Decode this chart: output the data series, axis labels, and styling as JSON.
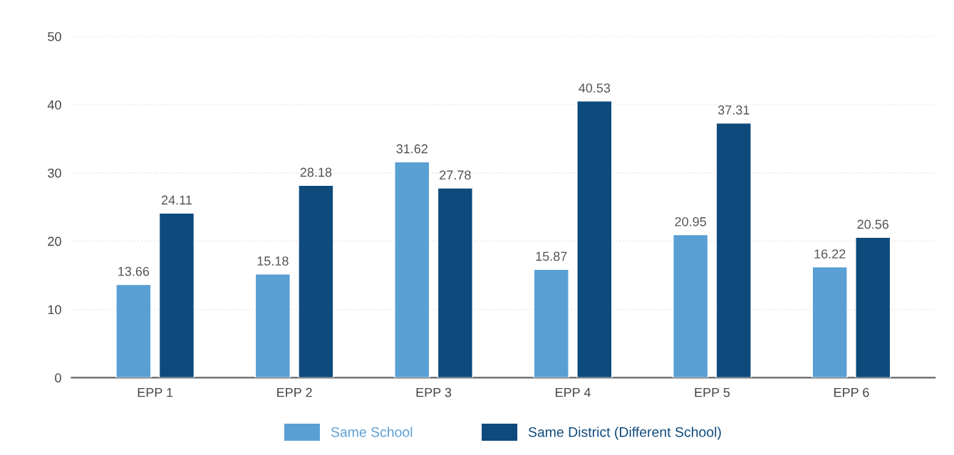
{
  "chart_data": {
    "type": "bar",
    "categories": [
      "EPP 1",
      "EPP 2",
      "EPP 3",
      "EPP 4",
      "EPP 5",
      "EPP 6"
    ],
    "series": [
      {
        "name": "Same School",
        "color": "#5a9fd4",
        "values": [
          13.66,
          15.18,
          31.62,
          15.87,
          20.95,
          16.22
        ]
      },
      {
        "name": "Same District (Different School)",
        "color": "#0e4a7c",
        "values": [
          24.11,
          28.18,
          27.78,
          40.53,
          37.31,
          20.56
        ]
      }
    ],
    "ylim": [
      0,
      50
    ],
    "yticks": [
      0,
      10,
      20,
      30,
      40,
      50
    ],
    "grid": "y",
    "legend": "bottom",
    "data_labels": true
  }
}
